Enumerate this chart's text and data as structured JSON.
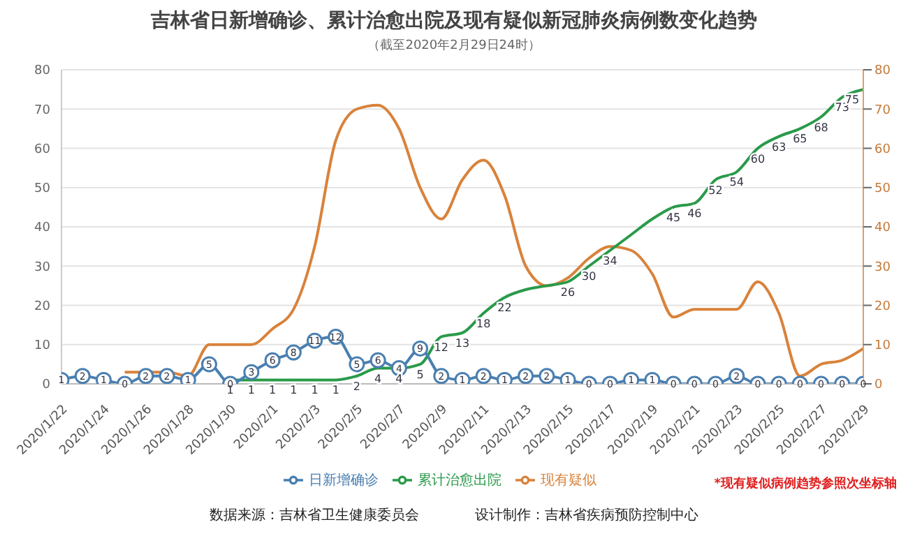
{
  "chart_data": {
    "type": "line",
    "title": "吉林省日新增确诊、累计治愈出院及现有疑似新冠肺炎病例数变化趋势",
    "subtitle": "（截至2020年2月29日24时）",
    "categories": [
      "2020/1/22",
      null,
      "2020/1/24",
      null,
      "2020/1/26",
      null,
      "2020/1/28",
      null,
      "2020/1/30",
      null,
      "2020/2/1",
      null,
      "2020/2/3",
      null,
      "2020/2/5",
      null,
      "2020/2/7",
      null,
      "2020/2/9",
      null,
      "2020/2/11",
      null,
      "2020/2/13",
      null,
      "2020/2/15",
      null,
      "2020/2/17",
      null,
      "2020/2/19",
      null,
      "2020/2/21",
      null,
      "2020/2/23",
      null,
      "2020/2/25",
      null,
      "2020/2/27",
      null,
      "2020/2/29"
    ],
    "series": [
      {
        "name": "日新增确诊",
        "color": "#4a7fb0",
        "marker": "circle",
        "values": [
          1,
          2,
          1,
          0,
          2,
          2,
          1,
          5,
          0,
          3,
          6,
          8,
          11,
          12,
          5,
          6,
          4,
          9,
          2,
          1,
          2,
          1,
          2,
          2,
          1,
          0,
          0,
          1,
          1,
          0,
          0,
          0,
          2,
          0,
          0,
          0,
          0,
          0,
          0
        ],
        "value_labels": [
          "1",
          "2",
          "1",
          "0",
          "2",
          "2",
          "1",
          "5",
          "0",
          "3",
          "6",
          "8",
          "11",
          "12",
          "5",
          "6",
          "4",
          "9",
          "2",
          "1",
          "2",
          "1",
          "2",
          "2",
          "1",
          "0",
          "0",
          "1",
          "1",
          "0",
          "0",
          "0",
          "2",
          "0",
          "0",
          "0",
          "0",
          "0",
          "0"
        ]
      },
      {
        "name": "累计治愈出院",
        "color": "#2a9a4a",
        "marker": "none",
        "values": [
          null,
          null,
          null,
          null,
          null,
          null,
          null,
          null,
          1,
          1,
          1,
          1,
          1,
          1,
          2,
          4,
          4,
          5,
          12,
          13,
          18,
          22,
          24,
          25,
          26,
          30,
          34,
          38,
          42,
          45,
          46,
          52,
          54,
          60,
          63,
          65,
          68,
          73,
          75
        ],
        "value_labels": [
          null,
          null,
          null,
          null,
          null,
          null,
          null,
          null,
          "1",
          "1",
          "1",
          "1",
          "1",
          "1",
          "2",
          "4",
          "4",
          "5",
          "12",
          "13",
          "18",
          "22",
          null,
          null,
          "26",
          "30",
          "34",
          null,
          null,
          "45",
          "46",
          "52",
          "54",
          "60",
          "63",
          "65",
          "68",
          "73",
          "75"
        ]
      },
      {
        "name": "现有疑似",
        "color": "#d9823b",
        "marker": "none",
        "axis": "y2",
        "values": [
          null,
          null,
          null,
          3,
          3,
          3,
          2,
          10,
          10,
          10,
          14,
          19,
          35,
          62,
          70,
          71,
          65,
          50,
          42,
          52,
          57,
          48,
          30,
          25,
          27,
          32,
          35,
          34,
          28,
          17,
          19,
          19,
          19,
          26,
          18,
          2,
          5,
          6,
          9
        ]
      }
    ],
    "ylim": [
      0,
      80
    ],
    "yticks": [
      0,
      10,
      20,
      30,
      40,
      50,
      60,
      70,
      80
    ],
    "y2lim": [
      0,
      80
    ],
    "y2ticks": [
      0,
      10,
      20,
      30,
      40,
      50,
      60,
      70,
      80
    ],
    "grid": "y",
    "legend": "bottom",
    "annotations": [
      "*现有疑似病例趋势参照次坐标轴",
      "数据来源：吉林省卫生健康委员会",
      "设计制作：吉林省疾病预防控制中心"
    ]
  }
}
